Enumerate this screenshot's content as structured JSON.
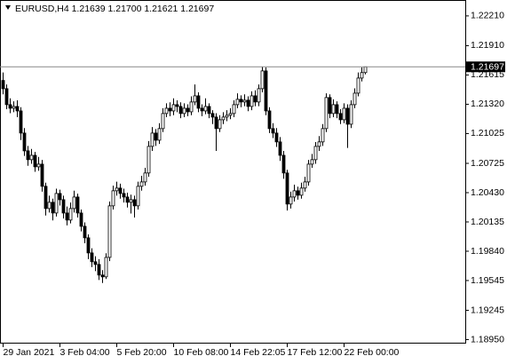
{
  "chart_data": {
    "type": "candlestick",
    "title": "EURUSD,H4  1.21639 1.21700 1.21621 1.21697",
    "categories": [
      "29 Jan 2021",
      null,
      null,
      null,
      null,
      null,
      null,
      null,
      null,
      null,
      null,
      null,
      null,
      null,
      null,
      null,
      "3 Feb 04:00",
      null,
      null,
      null,
      null,
      null,
      null,
      null,
      null,
      null,
      null,
      null,
      null,
      null,
      null,
      null,
      "5 Feb 20:00",
      null,
      null,
      null,
      null,
      null,
      null,
      null,
      null,
      null,
      null,
      null,
      null,
      null,
      null,
      null,
      "10 Feb 08:00",
      null,
      null,
      null,
      null,
      null,
      null,
      null,
      null,
      null,
      null,
      null,
      null,
      null,
      null,
      null,
      "14 Feb 22:05",
      null,
      null,
      null,
      null,
      null,
      null,
      null,
      null,
      null,
      null,
      null,
      null,
      null,
      null,
      null,
      "17 Feb 12:00",
      null,
      null,
      null,
      null,
      null,
      null,
      null,
      null,
      null,
      null,
      null,
      null,
      null,
      null,
      null,
      "22 Feb 00:00",
      null,
      null,
      null,
      null,
      null,
      null
    ],
    "open": [
      1.2156,
      1.21477,
      1.21316,
      1.2128,
      1.21298,
      1.21253,
      1.2103,
      1.20851,
      1.20762,
      1.20806,
      1.2069,
      1.20717,
      1.20494,
      1.2027,
      1.20333,
      1.20225,
      1.20422,
      1.20359,
      1.20225,
      1.20154,
      1.2027,
      1.20386,
      1.20225,
      1.20091,
      1.19975,
      1.19823,
      1.19734,
      1.19707,
      1.196,
      1.19582,
      1.19778,
      1.20297,
      1.20449,
      1.20476,
      1.20422,
      1.20386,
      1.20333,
      1.20359,
      1.20297,
      1.20494,
      1.20538,
      1.20628,
      1.20896,
      1.2103,
      1.20958,
      1.21075,
      1.21227,
      1.2128,
      1.21253,
      1.21316,
      1.21298,
      1.21227,
      1.2128,
      1.21244,
      1.21343,
      1.21405,
      1.2128,
      1.21253,
      1.21298,
      1.21227,
      1.21191,
      1.21075,
      1.21164,
      1.21191,
      1.21209,
      1.21227,
      1.21316,
      1.2137,
      1.21343,
      1.21361,
      1.21298,
      1.21405,
      1.21343,
      1.21477,
      1.21656,
      1.21253,
      1.21075,
      1.2103,
      1.20941,
      1.20806,
      1.20628,
      1.20315,
      1.20386,
      1.20449,
      1.20404,
      1.20476,
      1.20538,
      1.20717,
      1.20762,
      1.20896,
      1.20941,
      1.21075,
      1.21388,
      1.21227,
      1.21316,
      1.21227,
      1.21164,
      1.2128,
      1.21119,
      1.21316,
      1.21432,
      1.21584,
      1.21639
    ],
    "high": [
      1.2164,
      1.2152,
      1.2138,
      1.2135,
      1.2136,
      1.2129,
      1.2108,
      1.209,
      1.2087,
      1.2084,
      1.2079,
      1.2076,
      1.2053,
      1.204,
      1.2037,
      1.2047,
      1.2046,
      1.204,
      1.2029,
      1.2033,
      1.2045,
      1.2042,
      1.2026,
      1.2013,
      1.2001,
      1.1987,
      1.1979,
      1.1976,
      1.1965,
      1.1982,
      1.2034,
      1.205,
      1.2054,
      1.2052,
      1.2047,
      1.2043,
      1.2041,
      1.204,
      1.2054,
      1.206,
      1.2068,
      1.2095,
      1.2109,
      1.2107,
      1.2113,
      1.2128,
      1.2133,
      1.2134,
      1.2138,
      1.2136,
      1.2134,
      1.2133,
      1.2132,
      1.214,
      1.2152,
      1.2144,
      1.2132,
      1.2138,
      1.2133,
      1.2126,
      1.2123,
      1.2121,
      1.2124,
      1.2126,
      1.2128,
      1.2136,
      1.2143,
      1.2141,
      1.2142,
      1.214,
      1.2145,
      1.2146,
      1.2152,
      1.217,
      1.2169,
      1.2129,
      1.2113,
      1.2108,
      1.2099,
      1.2085,
      1.2066,
      1.2044,
      1.2051,
      1.2049,
      1.2053,
      1.2059,
      1.2076,
      1.2082,
      1.2094,
      1.21,
      1.2112,
      1.2143,
      1.2142,
      1.2137,
      1.2135,
      1.2127,
      1.2133,
      1.2132,
      1.2136,
      1.2148,
      1.2164,
      1.2169,
      1.217
    ],
    "low": [
      1.2142,
      1.2127,
      1.2123,
      1.2124,
      1.2119,
      1.2096,
      1.208,
      1.207,
      1.2072,
      1.2064,
      1.2065,
      1.2044,
      1.202,
      1.2023,
      1.2015,
      1.2019,
      1.203,
      1.2017,
      1.201,
      1.2012,
      1.2023,
      1.2018,
      1.2004,
      1.1992,
      1.1976,
      1.1968,
      1.1964,
      1.1955,
      1.1952,
      1.1956,
      1.1974,
      1.2026,
      1.204,
      1.2037,
      1.2033,
      1.2028,
      1.2022,
      1.2018,
      1.2026,
      1.2045,
      1.205,
      1.2059,
      1.2085,
      1.209,
      1.2092,
      1.2104,
      1.2119,
      1.212,
      1.2121,
      1.2124,
      1.2118,
      1.2119,
      1.212,
      1.2121,
      1.2131,
      1.2124,
      1.212,
      1.2122,
      1.2118,
      1.2112,
      1.2085,
      1.2104,
      1.2112,
      1.2115,
      1.2117,
      1.2119,
      1.2128,
      1.2129,
      1.213,
      1.2125,
      1.2126,
      1.213,
      1.213,
      1.2144,
      1.2121,
      1.2103,
      1.2098,
      1.2089,
      1.2075,
      1.2057,
      1.2025,
      1.2027,
      1.2034,
      1.2036,
      1.2037,
      1.2044,
      1.205,
      1.2068,
      1.2072,
      1.2085,
      1.209,
      1.2104,
      1.2118,
      1.2119,
      1.2118,
      1.2112,
      1.2113,
      1.2088,
      1.2108,
      1.2128,
      1.214,
      1.2155,
      1.21621
    ],
    "close": [
      1.21477,
      1.21316,
      1.2128,
      1.21298,
      1.21253,
      1.2103,
      1.20851,
      1.20762,
      1.20806,
      1.2069,
      1.20717,
      1.20494,
      1.2027,
      1.20333,
      1.20225,
      1.20422,
      1.20359,
      1.20225,
      1.20154,
      1.2027,
      1.20386,
      1.20225,
      1.20091,
      1.19975,
      1.19823,
      1.19734,
      1.19707,
      1.196,
      1.19582,
      1.19778,
      1.20297,
      1.20449,
      1.20476,
      1.20422,
      1.20386,
      1.20333,
      1.20359,
      1.20297,
      1.20494,
      1.20538,
      1.20628,
      1.20896,
      1.2103,
      1.20958,
      1.21075,
      1.21227,
      1.2128,
      1.21253,
      1.21316,
      1.21298,
      1.21227,
      1.2128,
      1.21244,
      1.21343,
      1.21405,
      1.2128,
      1.21253,
      1.21298,
      1.21227,
      1.21191,
      1.21075,
      1.21164,
      1.21191,
      1.21209,
      1.21227,
      1.21316,
      1.2137,
      1.21343,
      1.21361,
      1.21298,
      1.21405,
      1.21343,
      1.21477,
      1.21656,
      1.21253,
      1.21075,
      1.2103,
      1.20941,
      1.20806,
      1.20628,
      1.20315,
      1.20386,
      1.20449,
      1.20404,
      1.20476,
      1.20538,
      1.20717,
      1.20762,
      1.20896,
      1.20941,
      1.21075,
      1.21388,
      1.21227,
      1.21316,
      1.21227,
      1.21164,
      1.2128,
      1.21119,
      1.21316,
      1.21432,
      1.21584,
      1.21639,
      1.21697
    ],
    "bull_color": "#ffffff",
    "bear_color": "#000000",
    "outline_color": "#000000",
    "last_price": 1.21697,
    "ylim": [
      1.1891,
      1.2237
    ],
    "yticks": [
      {
        "value": 1.2221,
        "label": "1.22210"
      },
      {
        "value": 1.2191,
        "label": "1.21910"
      },
      1.21615,
      {
        "value": 1.2132,
        "label": "1.21320"
      },
      1.21025,
      1.20725,
      {
        "value": 1.2043,
        "label": "1.20430"
      },
      1.20135,
      {
        "value": 1.1984,
        "label": "1.19840"
      },
      1.19545,
      1.19245,
      {
        "value": 1.1895,
        "label": "1.18950"
      }
    ],
    "grid": false
  }
}
